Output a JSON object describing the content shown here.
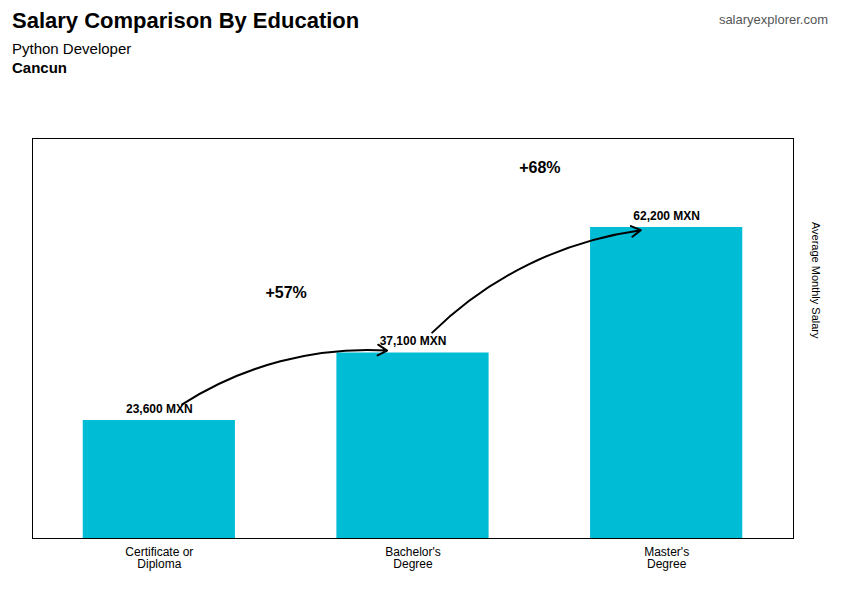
{
  "chart_data": {
    "type": "bar",
    "title": "Salary Comparison By Education",
    "subtitle": [
      "Python Developer",
      "Cancun"
    ],
    "caption": "salaryexplorer.com",
    "ylabel": "Average Monthly Salary",
    "categories": [
      "Certificate or\nDiploma",
      "Bachelor's\nDegree",
      "Master's\nDegree"
    ],
    "values": [
      23600,
      37100,
      62200
    ],
    "value_labels": [
      "23,600 MXN",
      "37,100 MXN",
      "62,200 MXN"
    ],
    "data_labels": true,
    "annotations": [
      "+57%",
      "+68%"
    ],
    "color": "#00bcd4",
    "ylim": [
      0,
      80000
    ],
    "tick_labels": "x",
    "grid": false
  }
}
